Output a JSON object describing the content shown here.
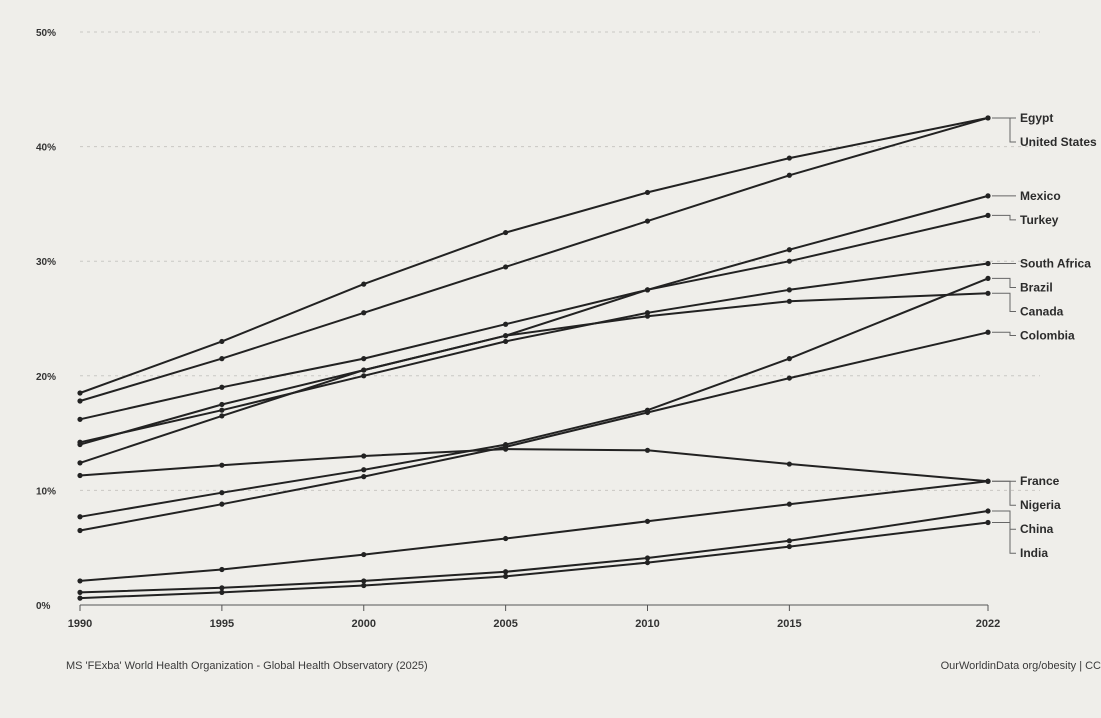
{
  "chart_data": {
    "type": "line",
    "title": "",
    "xlabel": "",
    "ylabel": "",
    "x_ticks": [
      "1990",
      "1995",
      "2000",
      "2005",
      "2010",
      "2015",
      "2022"
    ],
    "y_ticks": [
      "0%",
      "10%",
      "20%",
      "30%",
      "40%",
      "50%"
    ],
    "xlim": [
      1990,
      2022
    ],
    "ylim": [
      0,
      50
    ],
    "grid": true,
    "legend": "labels at line ends (right)",
    "source_left": "MS 'FExba' World Health Organization - Global Health Observatory (2025)",
    "source_right": "OurWorldinData org/obesity | CC",
    "series": [
      {
        "name": "Egypt",
        "x": [
          1990,
          1995,
          2000,
          2005,
          2010,
          2015,
          2022
        ],
        "values": [
          18.5,
          23,
          28,
          32.5,
          36,
          39,
          42.5
        ]
      },
      {
        "name": "United States",
        "x": [
          1990,
          1995,
          2000,
          2005,
          2010,
          2015,
          2022
        ],
        "values": [
          17.8,
          21.5,
          25.5,
          29.5,
          33.5,
          37.5,
          42.5
        ]
      },
      {
        "name": "Mexico",
        "x": [
          1990,
          1995,
          2000,
          2005,
          2010,
          2015,
          2022
        ],
        "values": [
          16.2,
          19,
          21.5,
          24.5,
          27.5,
          31,
          35.7
        ]
      },
      {
        "name": "Turkey",
        "x": [
          1990,
          1995,
          2000,
          2005,
          2010,
          2015,
          2022
        ],
        "values": [
          14,
          17.5,
          20.5,
          23.5,
          27.5,
          30,
          34
        ]
      },
      {
        "name": "South Africa",
        "x": [
          1990,
          1995,
          2000,
          2005,
          2010,
          2015,
          2022
        ],
        "values": [
          14.2,
          17,
          20,
          23,
          25.5,
          27.5,
          29.8
        ]
      },
      {
        "name": "Brazil",
        "x": [
          1990,
          1995,
          2000,
          2005,
          2010,
          2015,
          2022
        ],
        "values": [
          7.7,
          9.8,
          11.8,
          14,
          17,
          21.5,
          28.5
        ]
      },
      {
        "name": "Canada",
        "x": [
          1990,
          1995,
          2000,
          2005,
          2010,
          2015,
          2022
        ],
        "values": [
          12.4,
          16.5,
          20.5,
          23.5,
          25.2,
          26.5,
          27.2
        ]
      },
      {
        "name": "Colombia",
        "x": [
          1990,
          1995,
          2000,
          2005,
          2010,
          2015,
          2022
        ],
        "values": [
          6.5,
          8.8,
          11.2,
          13.8,
          16.8,
          19.8,
          23.8
        ]
      },
      {
        "name": "France",
        "x": [
          1990,
          1995,
          2000,
          2005,
          2010,
          2015,
          2022
        ],
        "values": [
          11.3,
          12.2,
          13,
          13.6,
          13.5,
          12.3,
          10.8
        ]
      },
      {
        "name": "Nigeria",
        "x": [
          1990,
          1995,
          2000,
          2005,
          2010,
          2015,
          2022
        ],
        "values": [
          2.1,
          3.1,
          4.4,
          5.8,
          7.3,
          8.8,
          10.8
        ]
      },
      {
        "name": "China",
        "x": [
          1990,
          1995,
          2000,
          2005,
          2010,
          2015,
          2022
        ],
        "values": [
          1.1,
          1.5,
          2.1,
          2.9,
          4.1,
          5.6,
          8.2
        ]
      },
      {
        "name": "India",
        "x": [
          1990,
          1995,
          2000,
          2005,
          2010,
          2015,
          2022
        ],
        "values": [
          0.6,
          1.1,
          1.7,
          2.5,
          3.7,
          5.1,
          7.2
        ]
      }
    ]
  }
}
